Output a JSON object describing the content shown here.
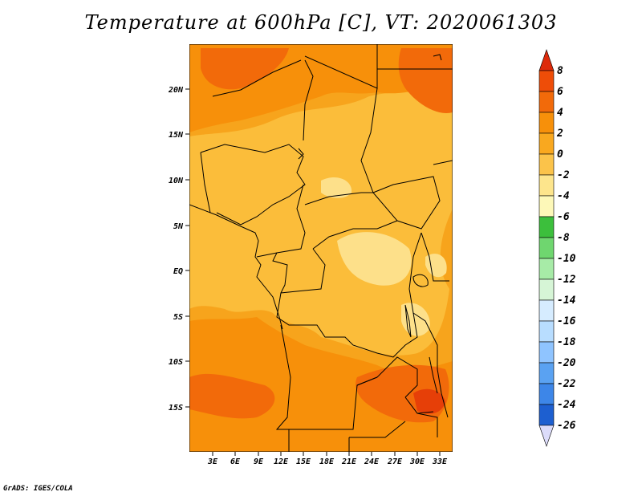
{
  "title": "Temperature at 600hPa [C], VT: 2020061303",
  "credit": "GrADS: IGES/COLA",
  "lat_labels": [
    "20N",
    "15N",
    "10N",
    "5N",
    "EQ",
    "5S",
    "10S",
    "15S"
  ],
  "lon_labels": [
    "3E",
    "6E",
    "9E",
    "12E",
    "15E",
    "18E",
    "21E",
    "24E",
    "27E",
    "30E",
    "33E"
  ],
  "colorbar": {
    "labels": [
      "8",
      "6",
      "4",
      "2",
      "0",
      "-2",
      "-4",
      "-6",
      "-8",
      "-10",
      "-12",
      "-14",
      "-16",
      "-18",
      "-20",
      "-22",
      "-24",
      "-26"
    ],
    "colors": [
      "#dd2a0a",
      "#ee4d08",
      "#f26a0a",
      "#f7900a",
      "#f9a81f",
      "#fbc34a",
      "#fde58c",
      "#fdf8b8",
      "#3cbf3c",
      "#6fd66f",
      "#a7eba7",
      "#d6f5d6",
      "#d6ecff",
      "#b8ddff",
      "#8fc4ff",
      "#5aa2f2",
      "#3d86e8",
      "#1d5fd0",
      "#0d3fa8",
      "#05207a",
      "#0a0a55",
      "#dcdcfa"
    ]
  },
  "map": {
    "lon_range": [
      0,
      34
    ],
    "lat_range": [
      -20,
      25
    ],
    "background_color": "#f7a41c"
  }
}
